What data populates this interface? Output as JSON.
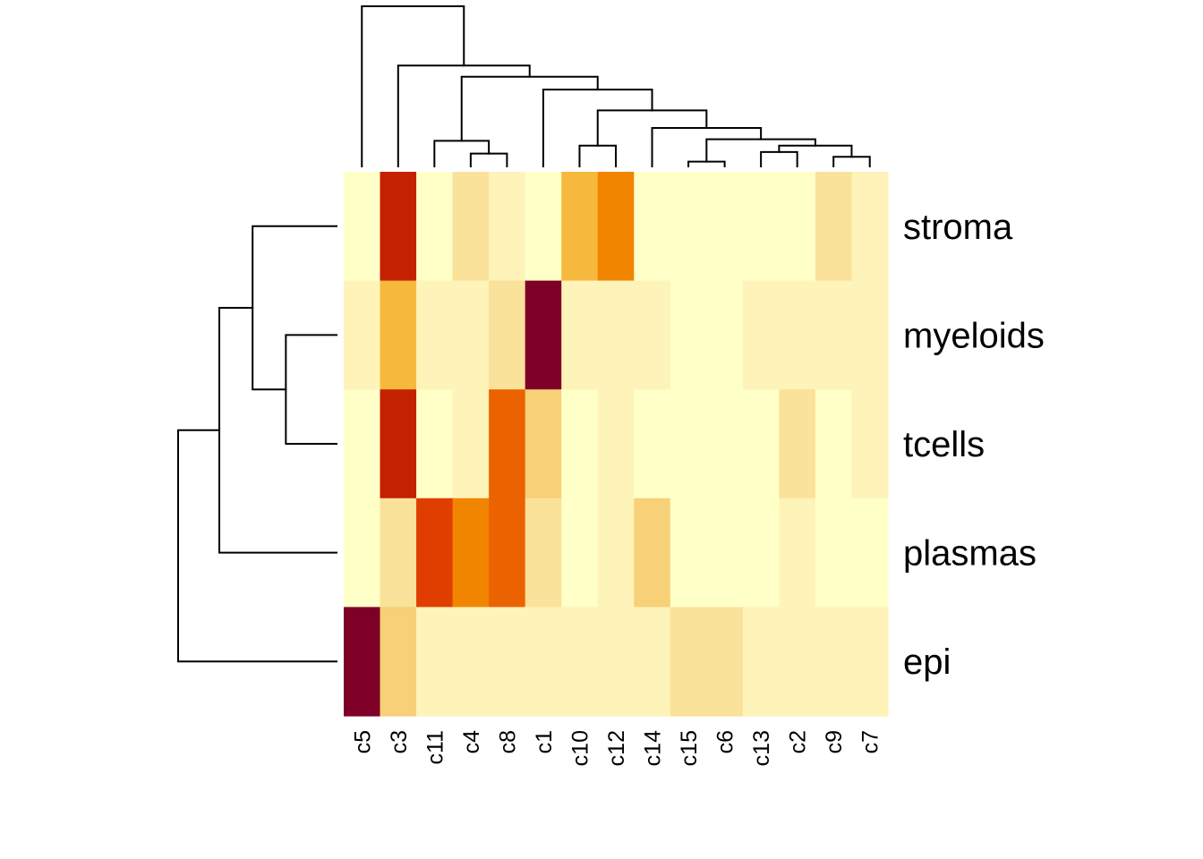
{
  "chart_data": {
    "type": "heatmap",
    "title": "",
    "xlabel": "",
    "ylabel": "",
    "rows": [
      "stroma",
      "myeloids",
      "tcells",
      "plasmas",
      "epi"
    ],
    "columns": [
      "c5",
      "c3",
      "c11",
      "c4",
      "c8",
      "c1",
      "c10",
      "c12",
      "c14",
      "c15",
      "c6",
      "c13",
      "c2",
      "c9",
      "c7"
    ],
    "value_scale": "ordinal color level 0 (lowest, pale yellow) to 9 (highest, dark red), estimated from cell color",
    "palette": [
      "#FFFFC8",
      "#FEF3B8",
      "#FAE29A",
      "#F7D077",
      "#F6B93E",
      "#F28500",
      "#EB6300",
      "#E03E00",
      "#C32100",
      "#7F0027"
    ],
    "values": [
      [
        0,
        8,
        0,
        2,
        1,
        0,
        4,
        5,
        0,
        0,
        0,
        0,
        0,
        2,
        1
      ],
      [
        1,
        4,
        1,
        1,
        2,
        9,
        1,
        1,
        1,
        0,
        0,
        1,
        1,
        1,
        1
      ],
      [
        0,
        8,
        0,
        1,
        6,
        3,
        0,
        1,
        0,
        0,
        0,
        0,
        2,
        0,
        1
      ],
      [
        0,
        2,
        7,
        5,
        6,
        2,
        0,
        1,
        3,
        0,
        0,
        0,
        1,
        0,
        0
      ],
      [
        9,
        3,
        1,
        1,
        1,
        1,
        1,
        1,
        1,
        2,
        2,
        1,
        1,
        1,
        1
      ]
    ],
    "column_dendrogram": {
      "note": "merge heights in relative units (0 = leaves, 1 = root)",
      "merges": [
        {
          "left": "c4",
          "right": "c8",
          "height": 0.08
        },
        {
          "left": "c15",
          "right": "c6",
          "height": 0.03
        },
        {
          "left": "c9",
          "right": "c7",
          "height": 0.06
        },
        {
          "left": "c13",
          "right": "c2",
          "height": 0.09
        },
        {
          "left": "c10",
          "right": "c12",
          "height": 0.13
        },
        {
          "left": "(c13,c2)",
          "right": "(c9,c7)",
          "height": 0.13
        },
        {
          "left": "c11",
          "right": "(c4,c8)",
          "height": 0.16
        },
        {
          "left": "(c15,c6)",
          "right": "((c13,c2),(c9,c7))",
          "height": 0.17
        },
        {
          "left": "c14",
          "right": "((c15,c6),...)",
          "height": 0.24
        },
        {
          "left": "(c10,c12)",
          "right": "(c14,...)",
          "height": 0.35
        },
        {
          "left": "c1",
          "right": "((c10,c12),...)",
          "height": 0.48
        },
        {
          "left": "(c11,(c4,c8))",
          "right": "(c1,...)",
          "height": 0.56
        },
        {
          "left": "c3",
          "right": "(...)",
          "height": 0.63
        },
        {
          "left": "c5",
          "right": "(c3,...)",
          "height": 1.0
        }
      ]
    },
    "row_dendrogram": {
      "note": "merge heights in relative units (0 = leaves, 1 = root)",
      "merges": [
        {
          "left": "myeloids",
          "right": "tcells",
          "height": 0.32
        },
        {
          "left": "stroma",
          "right": "(myeloids,tcells)",
          "height": 0.53
        },
        {
          "left": "(stroma,(myeloids,tcells))",
          "right": "plasmas",
          "height": 0.74
        },
        {
          "left": "(...)",
          "right": "epi",
          "height": 1.0
        }
      ]
    },
    "legend": "none",
    "grid": false
  }
}
